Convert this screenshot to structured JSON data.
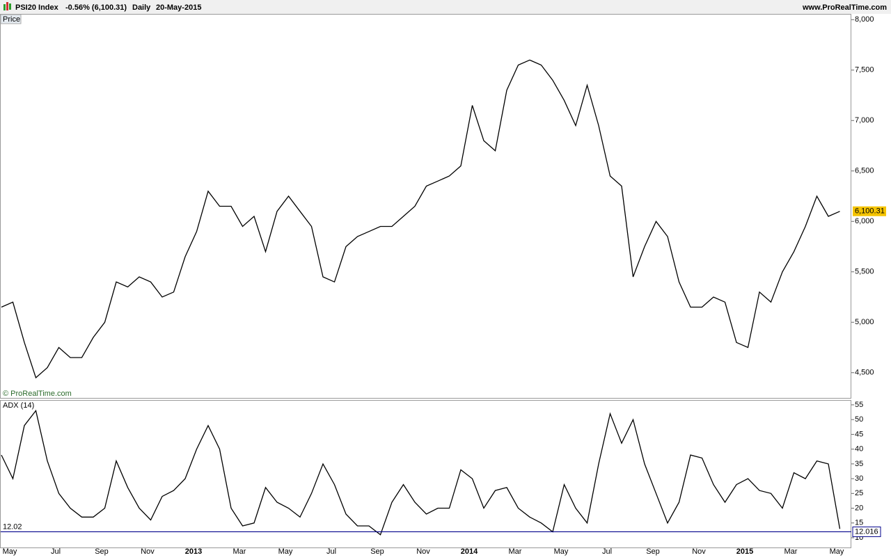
{
  "header": {
    "symbol": "PSI20 Index",
    "change": "-0.56% (6,100.31)",
    "period": "Daily",
    "date": "20-May-2015",
    "site": "www.ProRealTime.com",
    "watermark": "© ProRealTime.com"
  },
  "chart_data": [
    {
      "type": "line",
      "label": "Price",
      "color": "#000000",
      "values": [
        5150,
        5200,
        4800,
        4450,
        4550,
        4750,
        4650,
        4650,
        4850,
        5000,
        5400,
        5350,
        5450,
        5400,
        5250,
        5300,
        5650,
        5900,
        6300,
        6150,
        6150,
        5950,
        6050,
        5700,
        6100,
        6250,
        6100,
        5950,
        5450,
        5400,
        5750,
        5850,
        5900,
        5950,
        5950,
        6050,
        6150,
        6350,
        6400,
        6450,
        6550,
        7150,
        6800,
        6700,
        7300,
        7550,
        7600,
        7550,
        7400,
        7200,
        6950,
        7350,
        6950,
        6450,
        6350,
        5450,
        5750,
        6000,
        5850,
        5400,
        5150,
        5150,
        5250,
        5200,
        4800,
        4750,
        5300,
        5200,
        5500,
        5700,
        5950,
        6250,
        6050,
        6100
      ],
      "ylim": [
        4250,
        8050
      ],
      "yticks": [
        {
          "value": 4500,
          "label": "4,500"
        },
        {
          "value": 5000,
          "label": "5,000"
        },
        {
          "value": 5500,
          "label": "5,500"
        },
        {
          "value": 6000,
          "label": "6,000"
        },
        {
          "value": 6500,
          "label": "6,500"
        },
        {
          "value": 7000,
          "label": "7,000"
        },
        {
          "value": 7500,
          "label": "7,500"
        },
        {
          "value": 8000,
          "label": "8,000"
        }
      ],
      "last": {
        "value": 6100.31,
        "label": "6,100.31",
        "color": "#f5c400"
      }
    },
    {
      "type": "line",
      "label": "ADX (14)",
      "color": "#000000",
      "categories": [
        "May",
        null,
        null,
        null,
        "Jul",
        null,
        null,
        null,
        "Sep",
        null,
        null,
        null,
        "Nov",
        null,
        null,
        null,
        "2013",
        null,
        null,
        null,
        "Mar",
        null,
        null,
        null,
        "May",
        null,
        null,
        null,
        "Jul",
        null,
        null,
        null,
        "Sep",
        null,
        null,
        null,
        "Nov",
        null,
        null,
        null,
        "2014",
        null,
        null,
        null,
        "Mar",
        null,
        null,
        null,
        "May",
        null,
        null,
        null,
        "Jul",
        null,
        null,
        null,
        "Sep",
        null,
        null,
        null,
        "Nov",
        null,
        null,
        null,
        "2015",
        null,
        null,
        null,
        "Mar",
        null,
        null,
        null,
        "May",
        null
      ],
      "values": [
        38,
        30,
        48,
        53,
        36,
        25,
        20,
        17,
        17,
        20,
        36,
        27,
        20,
        16,
        24,
        26,
        30,
        40,
        48,
        40,
        20,
        14,
        15,
        27,
        22,
        20,
        17,
        25,
        35,
        28,
        18,
        14,
        14,
        11,
        22,
        28,
        22,
        18,
        20,
        20,
        33,
        30,
        20,
        26,
        27,
        20,
        17,
        15,
        12,
        28,
        20,
        15,
        35,
        52,
        42,
        50,
        35,
        25,
        15,
        22,
        38,
        37,
        28,
        22,
        28,
        30,
        26,
        25,
        20,
        32,
        30,
        36,
        35,
        13
      ],
      "ylim": [
        6.7,
        56.4
      ],
      "yticks": [
        10,
        15,
        20,
        25,
        30,
        35,
        40,
        45,
        50,
        55
      ],
      "reference": {
        "value": 12.016,
        "label": "12.016",
        "left_label": "12.02",
        "color": "#00008b"
      }
    }
  ]
}
